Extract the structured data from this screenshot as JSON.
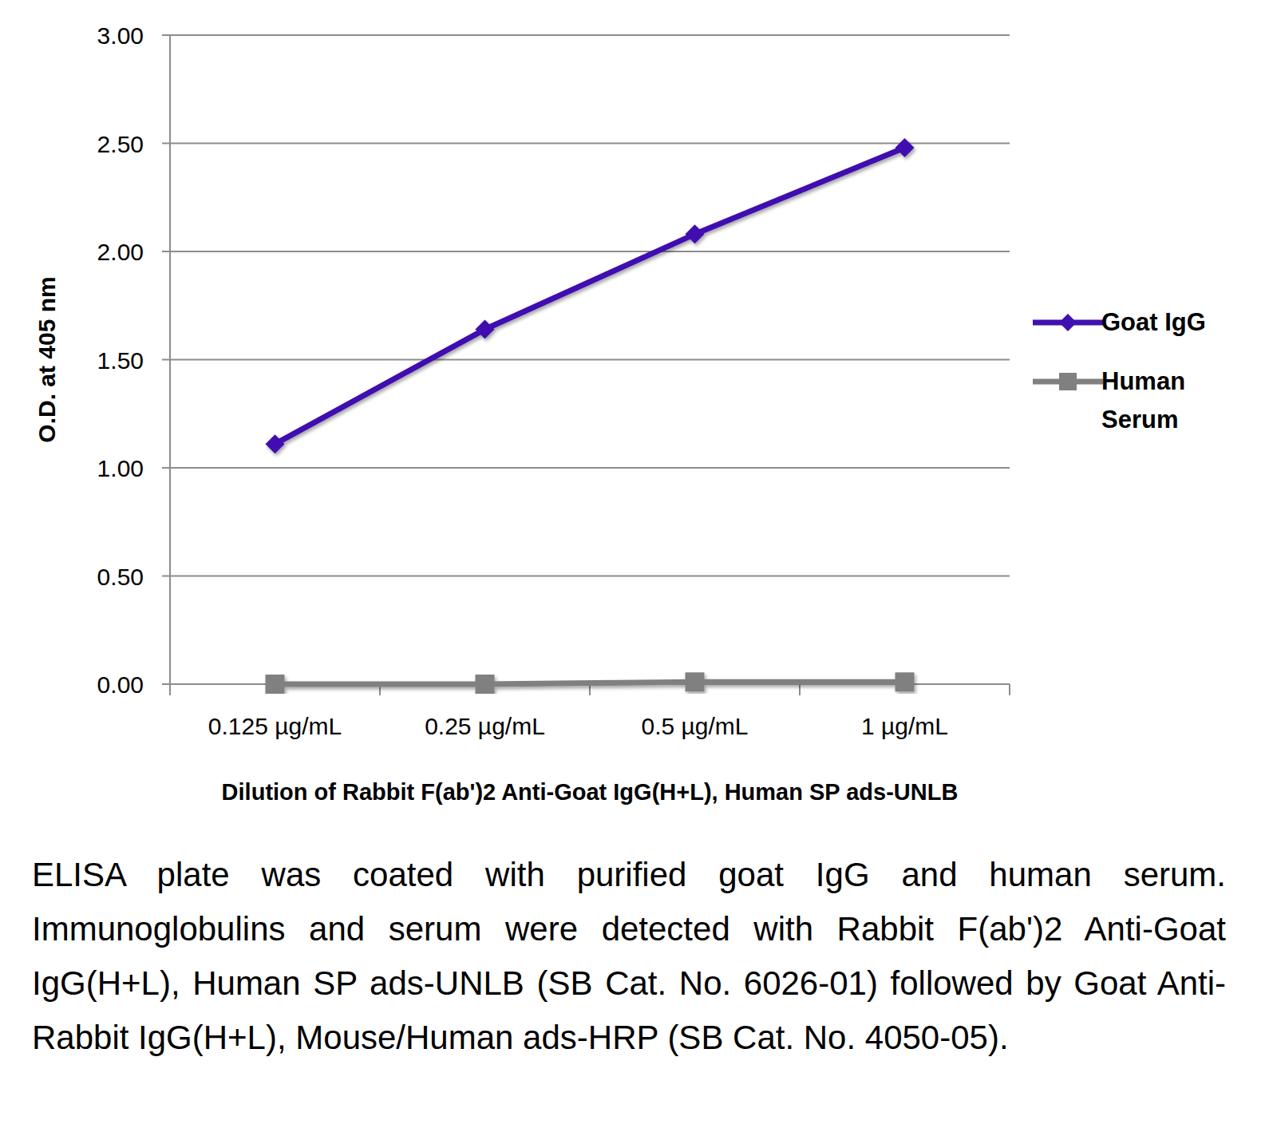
{
  "chart_data": {
    "type": "line",
    "x_label": "Dilution of Rabbit F(ab')2 Anti-Goat IgG(H+L), Human SP ads-UNLB",
    "y_label": "O.D. at 405 nm",
    "caption": "ELISA plate was coated with purified goat IgG and human serum.  Immunoglobulins and serum were detected with Rabbit F(ab')2 Anti-Goat IgG(H+L), Human SP ads-UNLB (SB Cat. No. 6026-01) followed by Goat Anti-Rabbit IgG(H+L), Mouse/Human ads-HRP (SB Cat. No. 4050-05).",
    "categories": [
      "0.125 µg/mL",
      "0.25 µg/mL",
      "0.5 µg/mL",
      "1 µg/mL"
    ],
    "series": [
      {
        "name": "Goat IgG",
        "color": "#4010b0",
        "marker": "diamond",
        "values": [
          1.11,
          1.64,
          2.08,
          2.48
        ]
      },
      {
        "name": "Human Serum",
        "color": "#808080",
        "marker": "square",
        "values": [
          0.0,
          0.0,
          0.01,
          0.01
        ]
      }
    ],
    "ylim": [
      0,
      3
    ],
    "yticks": [
      {
        "value": 0,
        "label": "0.00"
      },
      {
        "value": 0.5,
        "label": "0.50"
      },
      {
        "value": 1,
        "label": "1.00"
      },
      {
        "value": 1.5,
        "label": "1.50"
      },
      {
        "value": 2,
        "label": "2.00"
      },
      {
        "value": 2.5,
        "label": "2.50"
      },
      {
        "value": 3,
        "label": "3.00"
      }
    ],
    "grid": true,
    "legend": "right"
  }
}
